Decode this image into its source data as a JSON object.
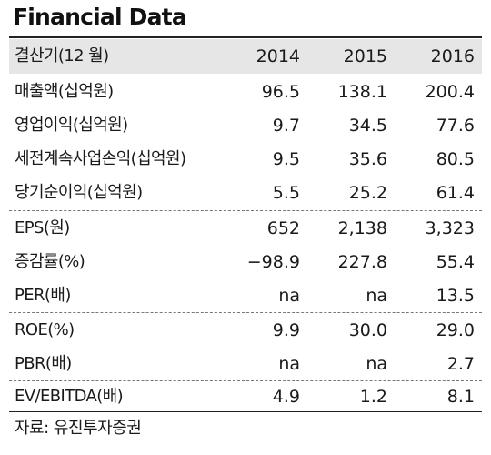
{
  "title": "Financial Data",
  "header": {
    "label": "결산기(12 월)",
    "years": [
      "2014",
      "2015",
      "2016"
    ]
  },
  "rows": [
    {
      "label": "매출액(십억원)",
      "values": [
        "96.5",
        "138.1",
        "200.4"
      ]
    },
    {
      "label": "영업이익(십억원)",
      "values": [
        "9.7",
        "34.5",
        "77.6"
      ]
    },
    {
      "label": "세전계속사업손익(십억원)",
      "values": [
        "9.5",
        "35.6",
        "80.5"
      ]
    },
    {
      "label": "당기순이익(십억원)",
      "values": [
        "5.5",
        "25.2",
        "61.4"
      ]
    },
    {
      "label": "EPS(원)",
      "values": [
        "652",
        "2,138",
        "3,323"
      ]
    },
    {
      "label": "증감률(%)",
      "values": [
        "−98.9",
        "227.8",
        "55.4"
      ]
    },
    {
      "label": "PER(배)",
      "values": [
        "na",
        "na",
        "13.5"
      ]
    },
    {
      "label": "ROE(%)",
      "values": [
        "9.9",
        "30.0",
        "29.0"
      ]
    },
    {
      "label": "PBR(배)",
      "values": [
        "na",
        "na",
        "2.7"
      ]
    },
    {
      "label": "EV/EBITDA(배)",
      "values": [
        "4.9",
        "1.2",
        "8.1"
      ]
    }
  ],
  "source": "자료: 유진투자증권"
}
